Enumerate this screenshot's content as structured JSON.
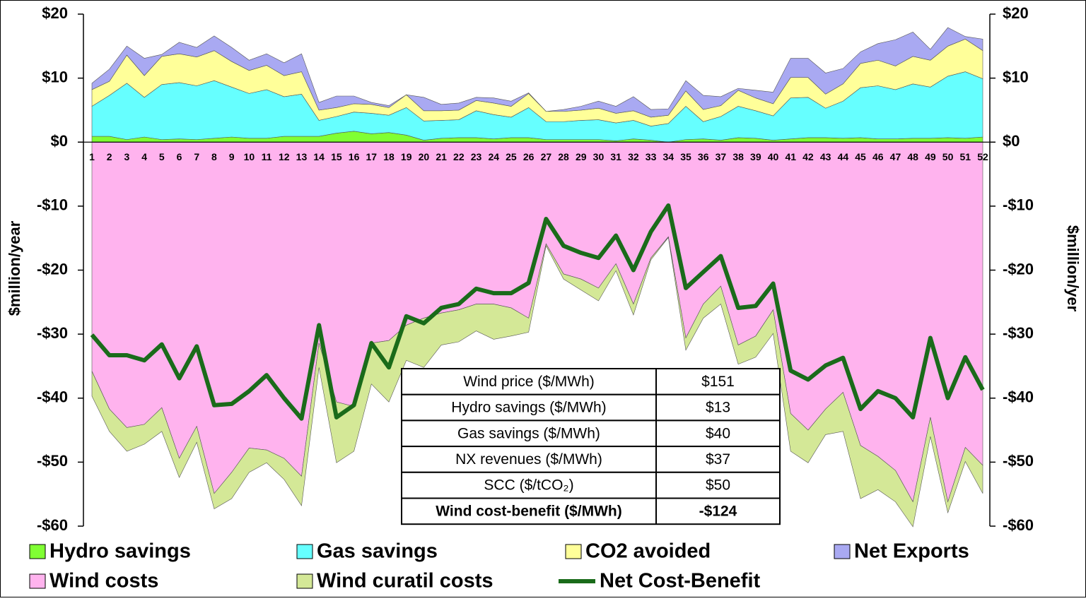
{
  "chart_data": {
    "type": "stacked-area",
    "y_label": "$million/year",
    "y2_label": "$million/yer",
    "categories": [
      "1",
      "2",
      "3",
      "4",
      "5",
      "6",
      "7",
      "8",
      "9",
      "10",
      "11",
      "12",
      "13",
      "14",
      "15",
      "16",
      "17",
      "18",
      "19",
      "20",
      "21",
      "22",
      "23",
      "24",
      "25",
      "26",
      "27",
      "28",
      "29",
      "30",
      "31",
      "32",
      "33",
      "34",
      "35",
      "36",
      "37",
      "38",
      "39",
      "40",
      "41",
      "42",
      "43",
      "44",
      "45",
      "46",
      "47",
      "48",
      "49",
      "50",
      "51",
      "52"
    ],
    "ylim": [
      -60,
      20
    ],
    "yticks": [
      {
        "value": 20,
        "label": "$20"
      },
      {
        "value": 10,
        "label": "$10"
      },
      {
        "value": 0,
        "label": "$0"
      },
      {
        "value": -10,
        "label": "-$10"
      },
      {
        "value": -20,
        "label": "-$20"
      },
      {
        "value": -30,
        "label": "-$30"
      },
      {
        "value": -40,
        "label": "-$40"
      },
      {
        "value": -50,
        "label": "-$50"
      },
      {
        "value": -60,
        "label": "-$60"
      }
    ],
    "y2lim": [
      -60,
      20
    ],
    "y2ticks": [
      {
        "value": 20,
        "label": "$20"
      },
      {
        "value": 10,
        "label": "$10"
      },
      {
        "value": 0,
        "label": "$0"
      },
      {
        "value": -10,
        "label": "-$10"
      },
      {
        "value": -20,
        "label": "-$20"
      },
      {
        "value": -30,
        "label": "-$30"
      },
      {
        "value": -40,
        "label": "-$40"
      },
      {
        "value": -50,
        "label": "-$50"
      },
      {
        "value": -60,
        "label": "-$60"
      }
    ],
    "series": [
      {
        "name": "Hydro savings",
        "color": "#80ff33",
        "values": [
          0.9,
          0.9,
          0.4,
          0.8,
          0.4,
          0.5,
          0.4,
          0.6,
          0.8,
          0.6,
          0.6,
          0.9,
          0.9,
          0.9,
          1.4,
          1.7,
          1.3,
          1.5,
          1.1,
          0.3,
          0.6,
          0.7,
          0.7,
          0.5,
          0.7,
          0.7,
          0.4,
          0.4,
          0.4,
          0.4,
          0.2,
          0.5,
          0.3,
          0.0,
          0.4,
          0.5,
          0.3,
          0.7,
          0.6,
          0.3,
          0.5,
          0.7,
          0.7,
          0.6,
          0.7,
          0.5,
          0.5,
          0.6,
          0.6,
          0.7,
          0.6,
          0.8
        ]
      },
      {
        "name": "Gas savings",
        "color": "#66ffff",
        "values": [
          4.7,
          6.4,
          8.8,
          6.2,
          8.6,
          8.8,
          8.4,
          9.0,
          7.8,
          7.0,
          7.6,
          6.2,
          6.6,
          2.5,
          2.6,
          3.0,
          3.2,
          2.7,
          4.3,
          3.0,
          2.8,
          2.8,
          4.2,
          3.8,
          3.2,
          4.7,
          2.8,
          2.8,
          3.0,
          3.1,
          2.8,
          2.9,
          2.2,
          2.9,
          5.2,
          2.7,
          3.7,
          4.9,
          4.3,
          3.8,
          6.4,
          6.3,
          4.6,
          5.8,
          7.8,
          8.3,
          7.7,
          8.5,
          8.0,
          9.6,
          10.4,
          9.1
        ]
      },
      {
        "name": "CO2 avoided",
        "color": "#ffff99",
        "values": [
          2.6,
          2.2,
          4.4,
          3.4,
          4.4,
          4.5,
          4.5,
          4.7,
          4.0,
          3.6,
          3.8,
          3.3,
          3.5,
          1.6,
          1.4,
          1.3,
          1.4,
          1.2,
          2.0,
          1.6,
          1.5,
          1.5,
          1.6,
          1.8,
          1.7,
          2.2,
          1.6,
          1.6,
          1.6,
          1.8,
          1.5,
          1.5,
          1.4,
          1.3,
          2.4,
          1.9,
          1.7,
          2.5,
          2.0,
          1.9,
          3.2,
          3.1,
          2.2,
          2.7,
          3.8,
          4.0,
          3.7,
          4.3,
          4.2,
          4.7,
          5.1,
          4.4
        ]
      },
      {
        "name": "Net Exports",
        "color": "#a9a9f2",
        "values": [
          1.0,
          1.9,
          1.4,
          2.7,
          0.3,
          1.8,
          1.5,
          2.3,
          2.2,
          1.6,
          1.8,
          2.0,
          2.8,
          1.2,
          1.8,
          1.2,
          0.3,
          0.3,
          0.0,
          2.1,
          1.0,
          1.1,
          0.5,
          0.8,
          0.8,
          0.1,
          0.0,
          0.3,
          0.6,
          1.1,
          1.1,
          2.2,
          1.2,
          1.0,
          1.6,
          2.2,
          1.4,
          0.3,
          1.2,
          1.8,
          3.0,
          3.0,
          3.3,
          2.4,
          1.8,
          2.6,
          4.1,
          3.8,
          1.7,
          2.9,
          0.4,
          1.8
        ]
      },
      {
        "name": "Wind costs",
        "color": "#ffb3ee",
        "values": [
          -35.8,
          -41.7,
          -44.6,
          -44.1,
          -41.5,
          -49.4,
          -44.4,
          -54.9,
          -51.6,
          -47.8,
          -48.1,
          -49.4,
          -52.2,
          -31.4,
          -40.6,
          -41.3,
          -31.4,
          -31.0,
          -28.6,
          -27.5,
          -26.7,
          -26.2,
          -25.3,
          -25.3,
          -25.9,
          -27.5,
          -15.9,
          -20.6,
          -21.4,
          -22.8,
          -19.0,
          -25.3,
          -18.1,
          -14.8,
          -30.6,
          -25.3,
          -22.5,
          -31.7,
          -30.3,
          -26.2,
          -42.4,
          -45.0,
          -41.7,
          -39.1,
          -47.4,
          -49.1,
          -51.3,
          -56.2,
          -43.0,
          -56.2,
          -47.7,
          -50.5
        ]
      },
      {
        "name": "Wind curatil costs",
        "color": "#d4e897",
        "values": [
          -3.9,
          -3.5,
          -3.7,
          -3.1,
          -3.7,
          -3.0,
          -2.5,
          -2.4,
          -4.1,
          -3.8,
          -2.0,
          -3.3,
          -4.6,
          -3.8,
          -9.5,
          -7.0,
          -6.4,
          -9.6,
          -5.5,
          -7.7,
          -5.0,
          -5.0,
          -4.2,
          -5.5,
          -4.4,
          -2.2,
          -0.3,
          -0.8,
          -1.7,
          -2.0,
          -1.1,
          -1.7,
          -0.3,
          -0.1,
          -1.9,
          -2.2,
          -2.8,
          -3.0,
          -3.3,
          -3.7,
          -5.9,
          -5.1,
          -4.0,
          -6.1,
          -8.3,
          -5.2,
          -4.9,
          -3.9,
          -3.0,
          -1.7,
          -2.2,
          -4.4
        ]
      },
      {
        "name": "Net Cost-Benefit",
        "color": "#1a6b1a",
        "type": "line",
        "values": [
          -30.1,
          -33.3,
          -33.3,
          -34.1,
          -31.6,
          -36.9,
          -31.9,
          -41.1,
          -40.9,
          -38.9,
          -36.4,
          -40.0,
          -43.2,
          -28.6,
          -43.0,
          -41.1,
          -31.4,
          -35.2,
          -27.2,
          -28.3,
          -25.9,
          -25.3,
          -22.9,
          -23.6,
          -23.6,
          -22.0,
          -12.0,
          -16.2,
          -17.3,
          -18.1,
          -14.6,
          -20.0,
          -14.0,
          -9.9,
          -22.8,
          -20.3,
          -17.8,
          -25.9,
          -25.6,
          -22.1,
          -35.7,
          -37.1,
          -34.9,
          -33.7,
          -41.7,
          -38.9,
          -40.0,
          -43.0,
          -30.6,
          -40.0,
          -33.6,
          -38.7
        ]
      }
    ],
    "table": [
      [
        "Wind price ($/MWh)",
        "$151"
      ],
      [
        "Hydro savings ($/MWh)",
        "$13"
      ],
      [
        "Gas savings ($/MWh)",
        "$40"
      ],
      [
        "NX revenues ($/MWh)",
        "$37"
      ],
      [
        "SCC ($/tCO₂)",
        "$50"
      ],
      [
        "Wind cost-benefit ($/MWh)",
        "-$124"
      ]
    ]
  }
}
